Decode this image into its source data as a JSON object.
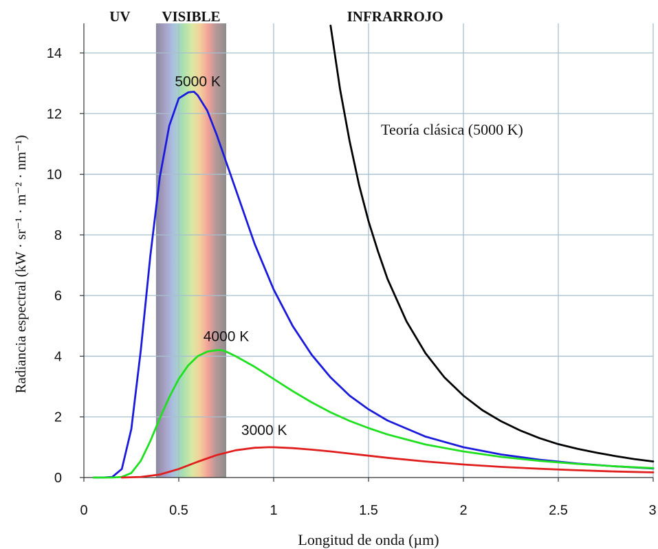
{
  "chart_data": {
    "type": "line",
    "title": "",
    "xlabel": "Longitud de onda (µm)",
    "ylabel": "Radiancia espectral (kW · sr⁻¹ · m⁻² · nm⁻¹)",
    "xlim": [
      0,
      3
    ],
    "ylim": [
      0,
      14
    ],
    "grid": true,
    "x_ticks": [
      "0",
      "0.5",
      "1",
      "1.5",
      "2",
      "2.5",
      "3"
    ],
    "y_ticks": [
      "0",
      "2",
      "4",
      "6",
      "8",
      "10",
      "12",
      "14"
    ],
    "regions": [
      {
        "label": "UV",
        "x_center": 0.19
      },
      {
        "label": "VISIBLE",
        "x_from": 0.38,
        "x_to": 0.75
      },
      {
        "label": "INFRARROJO",
        "x_center": 1.64
      }
    ],
    "series": [
      {
        "name": "5000 K",
        "color": "#1a1adc",
        "x": [
          0.05,
          0.1,
          0.15,
          0.2,
          0.25,
          0.3,
          0.35,
          0.4,
          0.45,
          0.5,
          0.55,
          0.58,
          0.6,
          0.65,
          0.7,
          0.75,
          0.8,
          0.9,
          1.0,
          1.1,
          1.2,
          1.3,
          1.4,
          1.5,
          1.6,
          1.8,
          2.0,
          2.2,
          2.4,
          2.6,
          2.8,
          3.0
        ],
        "y": [
          0,
          0,
          0.02,
          0.28,
          1.6,
          4.2,
          7.3,
          9.9,
          11.6,
          12.5,
          12.7,
          12.72,
          12.6,
          12.1,
          11.3,
          10.4,
          9.5,
          7.7,
          6.2,
          5.0,
          4.05,
          3.3,
          2.7,
          2.25,
          1.88,
          1.35,
          1.0,
          0.76,
          0.59,
          0.46,
          0.37,
          0.3
        ]
      },
      {
        "name": "4000 K",
        "color": "#1ee01e",
        "x": [
          0.05,
          0.15,
          0.2,
          0.25,
          0.3,
          0.35,
          0.4,
          0.45,
          0.5,
          0.55,
          0.6,
          0.65,
          0.7,
          0.725,
          0.75,
          0.8,
          0.9,
          1.0,
          1.1,
          1.2,
          1.3,
          1.4,
          1.5,
          1.6,
          1.8,
          2.0,
          2.2,
          2.4,
          2.6,
          2.8,
          3.0
        ],
        "y": [
          0,
          0,
          0.02,
          0.15,
          0.55,
          1.2,
          1.95,
          2.65,
          3.25,
          3.7,
          4.0,
          4.15,
          4.2,
          4.2,
          4.15,
          4.0,
          3.65,
          3.25,
          2.85,
          2.48,
          2.15,
          1.87,
          1.63,
          1.42,
          1.09,
          0.86,
          0.68,
          0.55,
          0.45,
          0.37,
          0.31
        ]
      },
      {
        "name": "3000 K",
        "color": "#e01e1e",
        "x": [
          0.2,
          0.3,
          0.4,
          0.5,
          0.6,
          0.7,
          0.8,
          0.9,
          0.97,
          1.0,
          1.1,
          1.2,
          1.3,
          1.4,
          1.5,
          1.6,
          1.8,
          2.0,
          2.2,
          2.4,
          2.6,
          2.8,
          3.0
        ],
        "y": [
          0,
          0.02,
          0.1,
          0.28,
          0.52,
          0.74,
          0.9,
          0.98,
          1.0,
          1.0,
          0.97,
          0.92,
          0.86,
          0.79,
          0.72,
          0.65,
          0.53,
          0.43,
          0.35,
          0.29,
          0.24,
          0.2,
          0.17
        ]
      },
      {
        "name": "Teoría clásica (5000 K)",
        "color": "#000000",
        "x": [
          1.3,
          1.35,
          1.4,
          1.45,
          1.5,
          1.55,
          1.6,
          1.7,
          1.8,
          1.9,
          2.0,
          2.1,
          2.2,
          2.3,
          2.4,
          2.5,
          2.6,
          2.7,
          2.8,
          2.9,
          3.0
        ],
        "y": [
          14.9,
          12.8,
          11.1,
          9.65,
          8.45,
          7.45,
          6.55,
          5.15,
          4.1,
          3.3,
          2.7,
          2.22,
          1.85,
          1.55,
          1.3,
          1.1,
          0.95,
          0.82,
          0.71,
          0.61,
          0.53
        ]
      }
    ],
    "annotations": [
      {
        "text": "5000 K",
        "x": 0.6,
        "y": 12.9
      },
      {
        "text": "4000 K",
        "x": 0.75,
        "y": 4.5
      },
      {
        "text": "3000 K",
        "x": 0.95,
        "y": 1.4
      },
      {
        "text": "Teoría clásica (5000 K)",
        "x": 1.94,
        "y": 11.3
      }
    ]
  }
}
